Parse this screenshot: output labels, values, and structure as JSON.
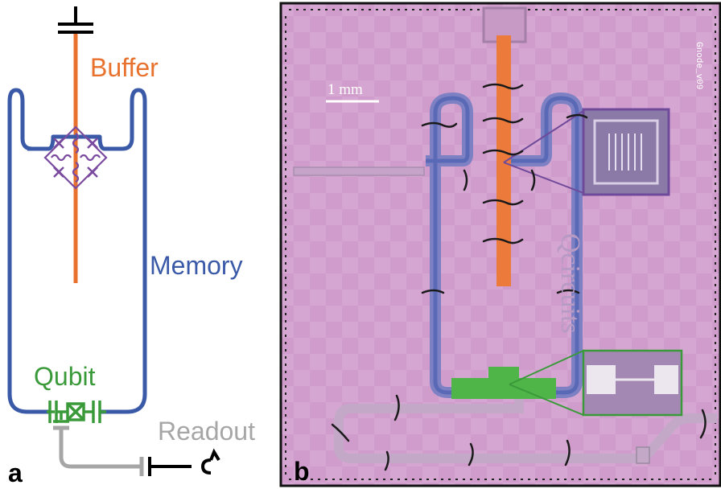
{
  "panel_a": {
    "letter": "a",
    "labels": {
      "buffer": "Buffer",
      "memory": "Memory",
      "qubit": "Qubit",
      "readout": "Readout"
    }
  },
  "panel_b": {
    "letter": "b",
    "scale_bar": "1 mm",
    "chip_watermark": "Qcircuits",
    "chip_id": "Gnode_v09"
  },
  "colors": {
    "buffer": "#e8722d",
    "memory": "#3a5aa8",
    "qubit": "#3a9a3a",
    "readout": "#a6a6a6",
    "coupler": "#7a4a9e",
    "chip_background": "#cf9ccb"
  }
}
